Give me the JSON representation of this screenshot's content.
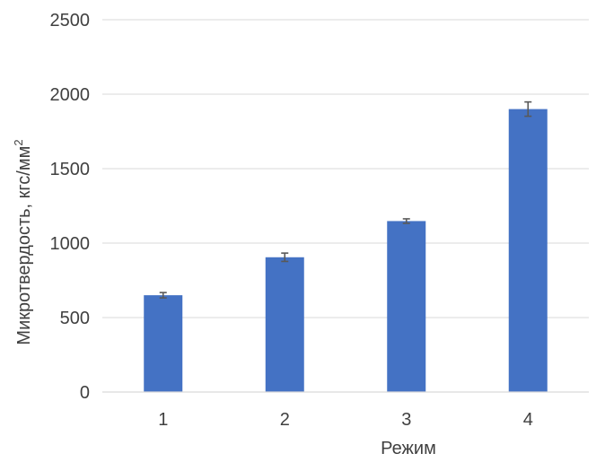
{
  "chart_data": {
    "type": "bar",
    "title": "",
    "xlabel": "Режим",
    "ylabel": "Микротвердость, кгс/мм",
    "ylabel_superscript": "2",
    "categories": [
      "1",
      "2",
      "3",
      "4"
    ],
    "values": [
      650,
      905,
      1148,
      1900
    ],
    "error": [
      18,
      28,
      15,
      48
    ],
    "ylim": [
      0,
      2500
    ],
    "yticks": [
      "0",
      "500",
      "1000",
      "1500",
      "2000",
      "2500"
    ],
    "ytick_values": [
      0,
      500,
      1000,
      1500,
      2000,
      2500
    ],
    "grid": true,
    "legend": "none",
    "bar_color": "#4472c4",
    "error_color": "#595959"
  }
}
